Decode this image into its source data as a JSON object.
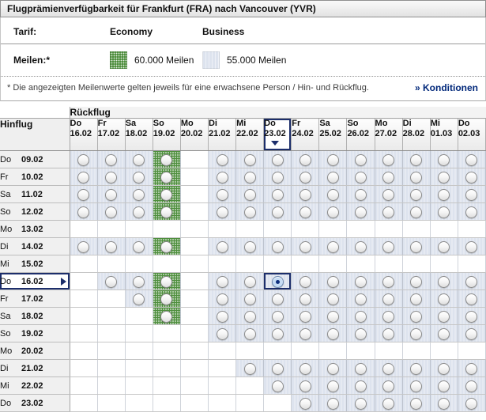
{
  "title": "Flugprämienverfügbarkeit für Frankfurt (FRA) nach Vancouver (YVR)",
  "legend": {
    "tarif_label": "Tarif:",
    "economy_label": "Economy",
    "business_label": "Business",
    "meilen_label": "Meilen:*",
    "economy_miles": "60.000 Meilen",
    "business_miles": "55.000 Meilen"
  },
  "note": "* Die angezeigten Meilenwerte gelten jeweils für eine erwachsene Person / Hin- und Rückflug.",
  "conditions_link": "» Konditionen",
  "colors": {
    "economy_green": "#4e8e3d",
    "business_blue": "#dde3ee",
    "selection_navy": "#1c2e6b",
    "link_navy": "#00277a"
  },
  "table": {
    "outbound_label": "Hinflug",
    "return_label": "Rückflug",
    "cell_codes": {
      "b": "business-55000-available",
      "g": "economy-60000-available",
      ".": "not-available",
      "s": "business-55000-selected"
    },
    "columns": [
      {
        "day": "Do",
        "date": "16.02"
      },
      {
        "day": "Fr",
        "date": "17.02"
      },
      {
        "day": "Sa",
        "date": "18.02"
      },
      {
        "day": "So",
        "date": "19.02"
      },
      {
        "day": "Mo",
        "date": "20.02"
      },
      {
        "day": "Di",
        "date": "21.02"
      },
      {
        "day": "Mi",
        "date": "22.02"
      },
      {
        "day": "Do",
        "date": "23.02",
        "selected": true
      },
      {
        "day": "Fr",
        "date": "24.02"
      },
      {
        "day": "Sa",
        "date": "25.02"
      },
      {
        "day": "So",
        "date": "26.02"
      },
      {
        "day": "Mo",
        "date": "27.02"
      },
      {
        "day": "Di",
        "date": "28.02"
      },
      {
        "day": "Mi",
        "date": "01.03"
      },
      {
        "day": "Do",
        "date": "02.03"
      }
    ],
    "rows": [
      {
        "day": "Do",
        "date": "09.02",
        "cells": "bbbg.bbbbbbbbbb"
      },
      {
        "day": "Fr",
        "date": "10.02",
        "cells": "bbbg.bbbbbbbbbb"
      },
      {
        "day": "Sa",
        "date": "11.02",
        "cells": "bbbg.bbbbbbbbbb"
      },
      {
        "day": "So",
        "date": "12.02",
        "cells": "bbbg.bbbbbbbbbb"
      },
      {
        "day": "Mo",
        "date": "13.02",
        "cells": "..............."
      },
      {
        "day": "Di",
        "date": "14.02",
        "cells": "bbbg.bbbbbbbbbb"
      },
      {
        "day": "Mi",
        "date": "15.02",
        "cells": "..............."
      },
      {
        "day": "Do",
        "date": "16.02",
        "cells": ".bbg.bbsbbbbbbb",
        "selected": true
      },
      {
        "day": "Fr",
        "date": "17.02",
        "cells": "..bg.bbbbbbbbbb"
      },
      {
        "day": "Sa",
        "date": "18.02",
        "cells": "...g.bbbbbbbbbb"
      },
      {
        "day": "So",
        "date": "19.02",
        "cells": ".....bbbbbbbbbb"
      },
      {
        "day": "Mo",
        "date": "20.02",
        "cells": "..............."
      },
      {
        "day": "Di",
        "date": "21.02",
        "cells": "......bbbbbbbbb"
      },
      {
        "day": "Mi",
        "date": "22.02",
        "cells": ".......bbbbbbbb"
      },
      {
        "day": "Do",
        "date": "23.02",
        "cells": "........bbbbbbb"
      }
    ]
  }
}
